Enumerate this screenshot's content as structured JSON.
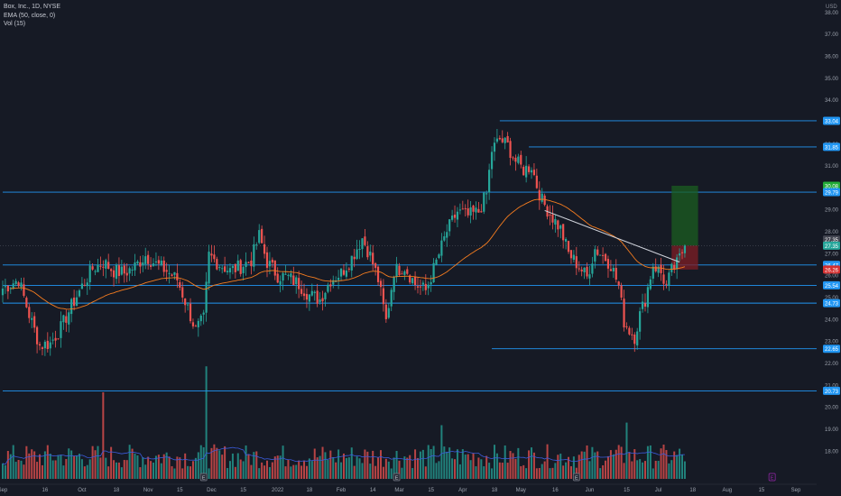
{
  "legend": {
    "symbol_line": "Box, Inc., 1D, NYSE",
    "ema_line": "EMA (50, close, 0)",
    "vol_line": "Vol (15)"
  },
  "currency": "USD",
  "colors": {
    "background": "#161a25",
    "up": "#26a69a",
    "down": "#ef5350",
    "level_line": "#2196f3",
    "ema": "#f57c1f",
    "vol_ma": "#3b5bdb",
    "trendline": "#d1d4dc",
    "profit_zone": "#1b5e20",
    "stop_zone": "#7f1d24",
    "target_tag": "#22ab37",
    "stop_tag": "#d32f2f",
    "level_tag": "#2196f3",
    "event_marker": "#9c27b0"
  },
  "chart_data": {
    "type": "candlestick",
    "title": "Box, Inc., 1D, NYSE",
    "indicators": [
      "EMA (50, close, 0)",
      "Vol (15)"
    ],
    "y_ticks": [
      "38.00",
      "37.00",
      "36.00",
      "35.00",
      "34.00",
      "33.00",
      "32.00",
      "31.00",
      "30.00",
      "29.00",
      "28.00",
      "27.00",
      "26.00",
      "25.00",
      "24.00",
      "23.00",
      "22.00",
      "21.00",
      "20.00",
      "19.00",
      "18.00"
    ],
    "y_range": [
      17.5,
      38.3
    ],
    "x_ticks": [
      "Sep",
      "16",
      "Oct",
      "18",
      "Nov",
      "15",
      "Dec",
      "15",
      "2022",
      "18",
      "Feb",
      "14",
      "Mar",
      "15",
      "Apr",
      "18",
      "May",
      "16",
      "Jun",
      "15",
      "Jul",
      "18",
      "Aug",
      "15",
      "Sep"
    ],
    "price_tags": [
      {
        "label": "33.04",
        "value": 33.04,
        "kind": "level"
      },
      {
        "label": "31.85",
        "value": 31.85,
        "kind": "level"
      },
      {
        "label": "30.08",
        "value": 30.08,
        "kind": "target"
      },
      {
        "label": "29.79",
        "value": 29.79,
        "kind": "level"
      },
      {
        "label": "27.35",
        "value": 27.63,
        "kind": "current-gray"
      },
      {
        "label": "27.35",
        "value": 27.35,
        "kind": "current"
      },
      {
        "label": "26.47",
        "value": 26.47,
        "kind": "level"
      },
      {
        "label": "26.26",
        "value": 26.26,
        "kind": "stop"
      },
      {
        "label": "25.54",
        "value": 25.54,
        "kind": "level"
      },
      {
        "label": "24.73",
        "value": 24.73,
        "kind": "level"
      },
      {
        "label": "22.65",
        "value": 22.65,
        "kind": "level"
      },
      {
        "label": "20.73",
        "value": 20.73,
        "kind": "level"
      }
    ],
    "horizontal_levels": [
      {
        "value": 33.04,
        "x_start_index": 188
      },
      {
        "value": 31.85,
        "x_start_index": 199
      },
      {
        "value": 29.79,
        "x_start_index": 0
      },
      {
        "value": 26.47,
        "x_start_index": 0
      },
      {
        "value": 25.54,
        "x_start_index": 0
      },
      {
        "value": 24.73,
        "x_start_index": 0
      },
      {
        "value": 22.65,
        "x_start_index": 185
      },
      {
        "value": 20.73,
        "x_start_index": 0
      }
    ],
    "trendline": {
      "from": [
        205,
        28.95
      ],
      "to": [
        256,
        26.6
      ]
    },
    "position": {
      "entry": 27.35,
      "target": 30.08,
      "stop": 26.26,
      "from_index": 253,
      "to_index": 263
    },
    "events": [
      {
        "type": "dividend-or-earnings",
        "index": 76,
        "glyph": "E"
      },
      {
        "type": "dividend-or-earnings",
        "index": 149,
        "glyph": "E"
      },
      {
        "type": "dividend-or-earnings",
        "index": 217,
        "glyph": "E"
      },
      {
        "type": "upcoming",
        "index": 291,
        "glyph": "E"
      }
    ],
    "series_keypoints": [
      [
        0,
        25.4
      ],
      [
        6,
        25.8
      ],
      [
        10,
        24.2
      ],
      [
        14,
        22.8
      ],
      [
        18,
        22.9
      ],
      [
        22,
        23.6
      ],
      [
        26,
        24.6
      ],
      [
        30,
        25.5
      ],
      [
        34,
        26.3
      ],
      [
        38,
        26.6
      ],
      [
        42,
        26.2
      ],
      [
        46,
        26.1
      ],
      [
        50,
        26.4
      ],
      [
        54,
        26.9
      ],
      [
        58,
        26.5
      ],
      [
        62,
        26.2
      ],
      [
        66,
        25.8
      ],
      [
        70,
        24.5
      ],
      [
        73,
        23.5
      ],
      [
        76,
        24.0
      ],
      [
        78,
        26.9
      ],
      [
        82,
        26.5
      ],
      [
        86,
        26.2
      ],
      [
        90,
        26.4
      ],
      [
        94,
        26.7
      ],
      [
        97,
        27.8
      ],
      [
        100,
        26.6
      ],
      [
        104,
        26.0
      ],
      [
        108,
        25.9
      ],
      [
        112,
        25.6
      ],
      [
        116,
        25.1
      ],
      [
        120,
        24.9
      ],
      [
        124,
        25.8
      ],
      [
        128,
        26.1
      ],
      [
        132,
        26.8
      ],
      [
        136,
        27.7
      ],
      [
        139,
        26.9
      ],
      [
        142,
        25.8
      ],
      [
        145,
        23.9
      ],
      [
        148,
        26.2
      ],
      [
        152,
        26.4
      ],
      [
        156,
        25.6
      ],
      [
        160,
        25.3
      ],
      [
        164,
        26.6
      ],
      [
        168,
        28.0
      ],
      [
        172,
        28.9
      ],
      [
        176,
        28.7
      ],
      [
        180,
        28.9
      ],
      [
        183,
        29.7
      ],
      [
        185,
        31.7
      ],
      [
        188,
        32.2
      ],
      [
        191,
        31.9
      ],
      [
        194,
        31.2
      ],
      [
        197,
        30.8
      ],
      [
        200,
        31.0
      ],
      [
        202,
        30.1
      ],
      [
        204,
        29.4
      ],
      [
        207,
        28.8
      ],
      [
        211,
        28.1
      ],
      [
        214,
        27.0
      ],
      [
        218,
        26.4
      ],
      [
        221,
        25.9
      ],
      [
        224,
        27.2
      ],
      [
        227,
        26.9
      ],
      [
        230,
        26.5
      ],
      [
        233,
        25.5
      ],
      [
        235,
        23.9
      ],
      [
        237,
        23.5
      ],
      [
        239,
        23.2
      ],
      [
        241,
        24.2
      ],
      [
        243,
        24.9
      ],
      [
        246,
        26.5
      ],
      [
        249,
        26.1
      ],
      [
        251,
        25.5
      ],
      [
        253,
        26.2
      ],
      [
        255,
        26.5
      ],
      [
        258,
        27.35
      ]
    ],
    "volume_spikes": [
      {
        "index": 38,
        "value": 1.0,
        "up": true
      },
      {
        "index": 77,
        "value": 1.3,
        "up": false
      },
      {
        "index": 166,
        "value": 0.62,
        "up": true
      },
      {
        "index": 236,
        "value": 0.65,
        "up": true
      }
    ]
  }
}
